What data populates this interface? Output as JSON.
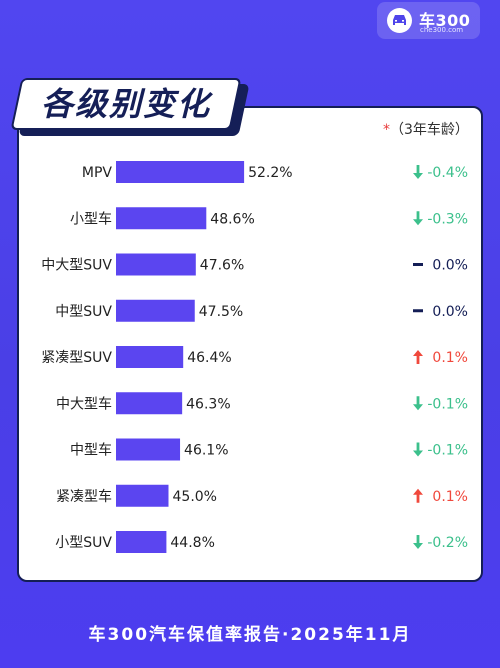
{
  "brand": {
    "name": "车300",
    "url": "che300.com"
  },
  "header": {
    "title": "各级别变化"
  },
  "note": {
    "star": "*",
    "text": "（3年车龄）"
  },
  "footer": {
    "text": "车300汽车保值率报告·2025年11月"
  },
  "colors": {
    "bar": "#5b45f0",
    "up": "#f0483c",
    "down": "#3cc08c",
    "flat": "#141e56"
  },
  "chart_data": {
    "type": "bar",
    "orientation": "horizontal",
    "categories": [
      "MPV",
      "小型车",
      "中大型SUV",
      "中型SUV",
      "紧凑型SUV",
      "中大型车",
      "中型车",
      "紧凑型车",
      "小型SUV"
    ],
    "values": [
      52.2,
      48.6,
      47.6,
      47.5,
      46.4,
      46.3,
      46.1,
      45.0,
      44.8
    ],
    "value_labels": [
      "52.2%",
      "48.6%",
      "47.6%",
      "47.5%",
      "46.4%",
      "46.3%",
      "46.1%",
      "45.0%",
      "44.8%"
    ],
    "changes": [
      -0.4,
      -0.3,
      0.0,
      0.0,
      0.1,
      -0.1,
      -0.1,
      0.1,
      -0.2
    ],
    "change_labels": [
      "-0.4%",
      "-0.3%",
      "0.0%",
      "0.0%",
      "0.1%",
      "-0.1%",
      "-0.1%",
      "0.1%",
      "-0.2%"
    ],
    "change_directions": [
      "down",
      "down",
      "flat",
      "flat",
      "up",
      "down",
      "down",
      "up",
      "down"
    ],
    "title": "",
    "xlabel": "",
    "ylabel": "",
    "grid": false,
    "legend": "none"
  }
}
